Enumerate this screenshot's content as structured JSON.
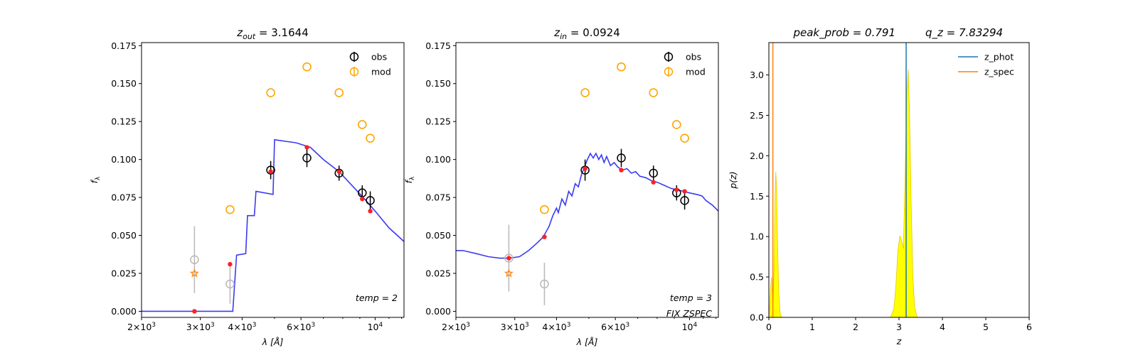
{
  "chart_data": [
    {
      "id": "sed_out",
      "type": "scatter",
      "title": {
        "var": "z",
        "sub": "out",
        "value": "3.1644"
      },
      "xlabel": "λ [Å]",
      "ylabel": "f_λ",
      "x_scale": "log",
      "xlim": [
        2000,
        12200
      ],
      "ylim": [
        -0.004,
        0.177
      ],
      "x_ticks": [
        {
          "value": 2000,
          "base": "2×10",
          "exp": "3"
        },
        {
          "value": 3000,
          "base": "3×10",
          "exp": "3"
        },
        {
          "value": 4000,
          "base": "4×10",
          "exp": "3"
        },
        {
          "value": 6000,
          "base": "6×10",
          "exp": "3"
        },
        {
          "value": 10000,
          "base": "10",
          "exp": "4"
        }
      ],
      "y_ticks": [
        "0.000",
        "0.025",
        "0.050",
        "0.075",
        "0.100",
        "0.125",
        "0.150",
        "0.175"
      ],
      "legend": {
        "position": "top-right",
        "entries": [
          "obs",
          "mod"
        ]
      },
      "colors": {
        "obs": "#000000",
        "obs_faint": "#b8b8b8",
        "mod": "#ffa500",
        "model_curve": "#3b3bf0",
        "model_points": "#ff2020",
        "star": "#ff8c1a"
      },
      "annotations": [
        {
          "text": "temp = 2"
        }
      ],
      "model_curve": [
        [
          2000,
          0.0
        ],
        [
          3750,
          0.0
        ],
        [
          3850,
          0.037
        ],
        [
          4100,
          0.038
        ],
        [
          4150,
          0.063
        ],
        [
          4350,
          0.063
        ],
        [
          4400,
          0.079
        ],
        [
          4950,
          0.077
        ],
        [
          5000,
          0.113
        ],
        [
          5800,
          0.111
        ],
        [
          6400,
          0.108
        ],
        [
          7000,
          0.1
        ],
        [
          7800,
          0.092
        ],
        [
          8600,
          0.082
        ],
        [
          9300,
          0.074
        ],
        [
          10000,
          0.066
        ],
        [
          11000,
          0.055
        ],
        [
          12200,
          0.046
        ]
      ],
      "obs": [
        {
          "x": 4870,
          "y": 0.093,
          "err": 0.006
        },
        {
          "x": 6250,
          "y": 0.101,
          "err": 0.006
        },
        {
          "x": 7800,
          "y": 0.091,
          "err": 0.005
        },
        {
          "x": 9150,
          "y": 0.078,
          "err": 0.005
        },
        {
          "x": 9670,
          "y": 0.073,
          "err": 0.006
        }
      ],
      "obs_faint": [
        {
          "x": 2880,
          "y": 0.034,
          "err": 0.022
        },
        {
          "x": 3680,
          "y": 0.018,
          "err": 0.013
        }
      ],
      "mod": [
        {
          "x": 2880,
          "y": 0.025,
          "marker": "star"
        },
        {
          "x": 3680,
          "y": 0.067
        },
        {
          "x": 4870,
          "y": 0.144
        },
        {
          "x": 6250,
          "y": 0.161
        },
        {
          "x": 7800,
          "y": 0.144
        },
        {
          "x": 9150,
          "y": 0.123
        },
        {
          "x": 9670,
          "y": 0.114
        }
      ],
      "model_points": [
        {
          "x": 2880,
          "y": 0.0
        },
        {
          "x": 3680,
          "y": 0.031
        },
        {
          "x": 4870,
          "y": 0.092
        },
        {
          "x": 6250,
          "y": 0.108
        },
        {
          "x": 7800,
          "y": 0.092
        },
        {
          "x": 9150,
          "y": 0.074
        },
        {
          "x": 9670,
          "y": 0.066
        }
      ]
    },
    {
      "id": "sed_in",
      "type": "scatter",
      "title": {
        "var": "z",
        "sub": "in",
        "value": "0.0924"
      },
      "xlabel": "λ [Å]",
      "ylabel": "f_λ",
      "x_scale": "log",
      "xlim": [
        2000,
        12200
      ],
      "ylim": [
        -0.004,
        0.177
      ],
      "x_ticks": [
        {
          "value": 2000,
          "base": "2×10",
          "exp": "3"
        },
        {
          "value": 3000,
          "base": "3×10",
          "exp": "3"
        },
        {
          "value": 4000,
          "base": "4×10",
          "exp": "3"
        },
        {
          "value": 6000,
          "base": "6×10",
          "exp": "3"
        },
        {
          "value": 10000,
          "base": "10",
          "exp": "4"
        }
      ],
      "y_ticks": [
        "0.000",
        "0.025",
        "0.050",
        "0.075",
        "0.100",
        "0.125",
        "0.150",
        "0.175"
      ],
      "legend": {
        "position": "top-right",
        "entries": [
          "obs",
          "mod"
        ]
      },
      "colors": {
        "obs": "#000000",
        "obs_faint": "#b8b8b8",
        "mod": "#ffa500",
        "model_curve": "#3b3bf0",
        "model_points": "#ff2020",
        "star": "#ff8c1a"
      },
      "annotations": [
        {
          "text": "temp = 3"
        },
        {
          "text": "FIX ZSPEC"
        }
      ],
      "model_curve": [
        [
          2000,
          0.04
        ],
        [
          2100,
          0.04
        ],
        [
          2300,
          0.038
        ],
        [
          2500,
          0.036
        ],
        [
          2700,
          0.035
        ],
        [
          2900,
          0.035
        ],
        [
          3100,
          0.036
        ],
        [
          3300,
          0.04
        ],
        [
          3500,
          0.045
        ],
        [
          3650,
          0.049
        ],
        [
          3800,
          0.056
        ],
        [
          3900,
          0.063
        ],
        [
          4000,
          0.068
        ],
        [
          4050,
          0.065
        ],
        [
          4150,
          0.074
        ],
        [
          4250,
          0.07
        ],
        [
          4350,
          0.079
        ],
        [
          4450,
          0.076
        ],
        [
          4550,
          0.084
        ],
        [
          4650,
          0.082
        ],
        [
          4750,
          0.09
        ],
        [
          4850,
          0.095
        ],
        [
          4950,
          0.1
        ],
        [
          5050,
          0.104
        ],
        [
          5150,
          0.101
        ],
        [
          5250,
          0.104
        ],
        [
          5350,
          0.1
        ],
        [
          5450,
          0.103
        ],
        [
          5550,
          0.098
        ],
        [
          5650,
          0.102
        ],
        [
          5800,
          0.096
        ],
        [
          5950,
          0.098
        ],
        [
          6100,
          0.095
        ],
        [
          6300,
          0.093
        ],
        [
          6500,
          0.094
        ],
        [
          6700,
          0.091
        ],
        [
          6900,
          0.092
        ],
        [
          7100,
          0.089
        ],
        [
          7400,
          0.088
        ],
        [
          7700,
          0.086
        ],
        [
          8000,
          0.085
        ],
        [
          8400,
          0.083
        ],
        [
          8800,
          0.081
        ],
        [
          9200,
          0.08
        ],
        [
          9600,
          0.079
        ],
        [
          10000,
          0.078
        ],
        [
          10500,
          0.077
        ],
        [
          10900,
          0.076
        ],
        [
          11200,
          0.073
        ],
        [
          11700,
          0.07
        ],
        [
          12200,
          0.066
        ]
      ],
      "obs": [
        {
          "x": 4870,
          "y": 0.093,
          "err": 0.007
        },
        {
          "x": 6250,
          "y": 0.101,
          "err": 0.006
        },
        {
          "x": 7800,
          "y": 0.091,
          "err": 0.005
        },
        {
          "x": 9150,
          "y": 0.078,
          "err": 0.005
        },
        {
          "x": 9670,
          "y": 0.073,
          "err": 0.006
        }
      ],
      "obs_faint": [
        {
          "x": 2880,
          "y": 0.035,
          "err": 0.022
        },
        {
          "x": 3680,
          "y": 0.018,
          "err": 0.014
        }
      ],
      "mod": [
        {
          "x": 2880,
          "y": 0.025,
          "marker": "star"
        },
        {
          "x": 3680,
          "y": 0.067
        },
        {
          "x": 4870,
          "y": 0.144
        },
        {
          "x": 6250,
          "y": 0.161
        },
        {
          "x": 7800,
          "y": 0.144
        },
        {
          "x": 9150,
          "y": 0.123
        },
        {
          "x": 9670,
          "y": 0.114
        }
      ],
      "model_points": [
        {
          "x": 2880,
          "y": 0.035
        },
        {
          "x": 3680,
          "y": 0.049
        },
        {
          "x": 4870,
          "y": 0.094
        },
        {
          "x": 6250,
          "y": 0.093
        },
        {
          "x": 7800,
          "y": 0.085
        },
        {
          "x": 9150,
          "y": 0.08
        },
        {
          "x": 9670,
          "y": 0.079
        }
      ]
    },
    {
      "id": "pz",
      "type": "area",
      "title": {
        "left": "peak_prob = 0.791",
        "right": "q_z = 7.83294"
      },
      "xlabel": "z",
      "ylabel": "p(z)",
      "xlim": [
        0,
        6
      ],
      "ylim": [
        0,
        3.4
      ],
      "x_ticks": [
        "0",
        "1",
        "2",
        "3",
        "4",
        "5",
        "6"
      ],
      "y_ticks": [
        "0.0",
        "0.5",
        "1.0",
        "1.5",
        "2.0",
        "2.5",
        "3.0"
      ],
      "legend": {
        "position": "top-right",
        "entries": [
          "z_phot",
          "z_spec"
        ]
      },
      "colors": {
        "z_phot": "#1f77b4",
        "z_spec": "#ff7f0e",
        "fill": "#ffff00"
      },
      "z_phot": 3.1644,
      "z_spec": 0.0924,
      "pdf": [
        [
          0.0,
          0.0
        ],
        [
          0.02,
          0.15
        ],
        [
          0.04,
          0.35
        ],
        [
          0.06,
          0.5
        ],
        [
          0.08,
          0.3
        ],
        [
          0.1,
          0.2
        ],
        [
          0.12,
          0.6
        ],
        [
          0.14,
          1.4
        ],
        [
          0.16,
          1.8
        ],
        [
          0.18,
          1.55
        ],
        [
          0.2,
          0.9
        ],
        [
          0.23,
          0.3
        ],
        [
          0.26,
          0.05
        ],
        [
          0.3,
          0.0
        ],
        [
          2.8,
          0.0
        ],
        [
          2.88,
          0.1
        ],
        [
          2.93,
          0.4
        ],
        [
          2.97,
          0.8
        ],
        [
          3.02,
          1.01
        ],
        [
          3.06,
          0.95
        ],
        [
          3.1,
          0.85
        ],
        [
          3.14,
          1.7
        ],
        [
          3.18,
          2.8
        ],
        [
          3.21,
          3.07
        ],
        [
          3.24,
          2.6
        ],
        [
          3.28,
          1.4
        ],
        [
          3.32,
          0.5
        ],
        [
          3.36,
          0.12
        ],
        [
          3.42,
          0.0
        ],
        [
          5.0,
          0.0
        ]
      ]
    }
  ]
}
